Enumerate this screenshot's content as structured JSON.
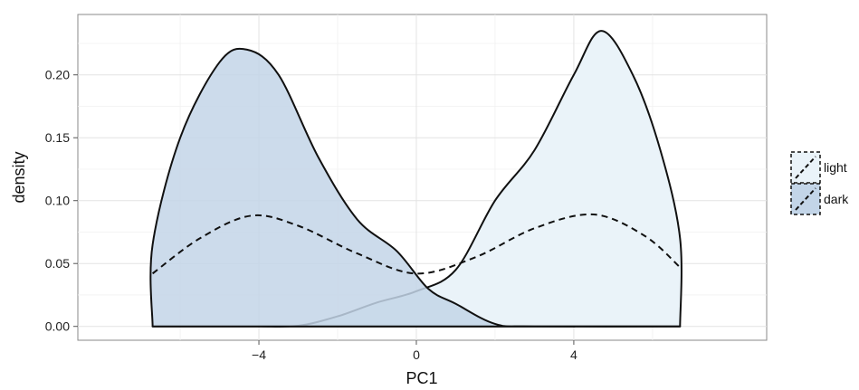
{
  "chart_data": {
    "type": "area",
    "title": "",
    "xlabel": "PC1",
    "ylabel": "density",
    "xlim": [
      -8.6,
      8.9
    ],
    "ylim": [
      -0.011,
      0.248
    ],
    "x_ticks": [
      -4,
      0,
      4
    ],
    "x_tick_labels": [
      "−4",
      "0",
      "4"
    ],
    "y_ticks": [
      0.0,
      0.05,
      0.1,
      0.15,
      0.2
    ],
    "y_tick_labels": [
      "0.00",
      "0.05",
      "0.10",
      "0.15",
      "0.20"
    ],
    "grid": true,
    "legend_position": "right",
    "series": [
      {
        "name": "light",
        "fill": "#eaf3f9",
        "points": [
          [
            -6.7,
            0
          ],
          [
            -5,
            0
          ],
          [
            -4,
            0
          ],
          [
            -3,
            0.0005
          ],
          [
            -2,
            0.008
          ],
          [
            -1,
            0.019
          ],
          [
            0,
            0.028
          ],
          [
            1,
            0.045
          ],
          [
            2,
            0.1
          ],
          [
            3,
            0.14
          ],
          [
            4,
            0.2
          ],
          [
            4.7,
            0.235
          ],
          [
            5.5,
            0.2
          ],
          [
            6.2,
            0.14
          ],
          [
            6.7,
            0.07
          ],
          [
            6.7,
            0
          ]
        ]
      },
      {
        "name": "dark",
        "fill": "#c3d5e8",
        "points": [
          [
            -6.7,
            0
          ],
          [
            -6.7,
            0.065
          ],
          [
            -6,
            0.15
          ],
          [
            -5,
            0.21
          ],
          [
            -4.3,
            0.22
          ],
          [
            -3.5,
            0.2
          ],
          [
            -2.5,
            0.135
          ],
          [
            -1.5,
            0.085
          ],
          [
            -0.5,
            0.06
          ],
          [
            0.3,
            0.03
          ],
          [
            1,
            0.018
          ],
          [
            2,
            0.002
          ],
          [
            3,
            0
          ],
          [
            6.7,
            0
          ]
        ]
      }
    ],
    "reference_curve": {
      "style": "dashed",
      "points": [
        [
          -6.7,
          0.042
        ],
        [
          -5.5,
          0.07
        ],
        [
          -4.2,
          0.088
        ],
        [
          -3,
          0.08
        ],
        [
          -1.5,
          0.058
        ],
        [
          0,
          0.042
        ],
        [
          1.5,
          0.055
        ],
        [
          3,
          0.078
        ],
        [
          4.5,
          0.089
        ],
        [
          5.8,
          0.072
        ],
        [
          6.7,
          0.047
        ]
      ]
    }
  }
}
